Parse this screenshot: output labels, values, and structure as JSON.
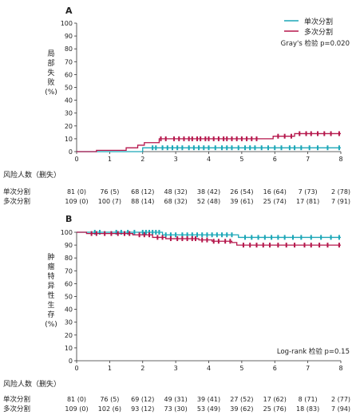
{
  "chart_data": [
    {
      "type": "line",
      "panel_label": "A",
      "ylabel_chars": [
        "局",
        "部",
        "失",
        "败",
        "(%)"
      ],
      "xlim": [
        0,
        8
      ],
      "ylim": [
        0,
        100
      ],
      "xticks": [
        0,
        1,
        2,
        3,
        4,
        5,
        6,
        7,
        8
      ],
      "yticks": [
        0,
        10,
        20,
        30,
        40,
        50,
        60,
        70,
        80,
        90,
        100
      ],
      "legend": {
        "position": "top-right",
        "entries": [
          {
            "name": "单次分割",
            "color": "#1aa6b7"
          },
          {
            "name": "多次分割",
            "color": "#b5164b"
          }
        ]
      },
      "annotation": "Gray's 检验 p=0.020",
      "series": [
        {
          "name": "单次分割",
          "color": "#1aa6b7",
          "x": [
            0,
            1.9,
            2.0,
            8.0
          ],
          "y": [
            0,
            0,
            3,
            3
          ],
          "censor_x": [
            2.3,
            2.4,
            2.6,
            2.75,
            2.9,
            3.05,
            3.2,
            3.4,
            3.55,
            3.7,
            3.85,
            4.0,
            4.2,
            4.4,
            4.55,
            4.7,
            4.9,
            5.1,
            5.25,
            5.4,
            5.6,
            5.8,
            6.0,
            6.2,
            6.45,
            6.6,
            6.8,
            7.05,
            7.3,
            7.6,
            7.95
          ],
          "censor_y": 3
        },
        {
          "name": "多次分割",
          "color": "#b5164b",
          "x": [
            0,
            0.6,
            1.1,
            1.5,
            1.85,
            2.05,
            2.5,
            2.75,
            3.0,
            5.5,
            5.95,
            6.6,
            8.0
          ],
          "y": [
            0,
            1,
            1,
            3,
            5,
            7,
            10,
            10,
            10,
            10,
            12,
            14,
            14
          ],
          "censor_x": [
            2.55,
            2.7,
            2.95,
            3.1,
            3.25,
            3.4,
            3.5,
            3.65,
            3.75,
            3.9,
            4.0,
            4.15,
            4.3,
            4.45,
            4.55,
            4.7,
            4.85,
            5.0,
            5.15,
            5.3,
            5.45,
            6.1,
            6.3,
            6.5,
            6.75,
            6.95,
            7.1,
            7.3,
            7.5,
            7.7,
            7.95
          ],
          "censor_y_by_x": "step"
        }
      ],
      "risk_table": {
        "title": "风险人数（删失）",
        "rows": [
          {
            "label": "单次分割",
            "values": [
              "81 (0)",
              "76 (5)",
              "68 (12)",
              "48 (32)",
              "38 (42)",
              "26 (54)",
              "16 (64)",
              "7 (73)",
              "2 (78)"
            ]
          },
          {
            "label": "多次分割",
            "values": [
              "109 (0)",
              "100 (7)",
              "88 (14)",
              "68 (32)",
              "52 (48)",
              "39 (61)",
              "25 (74)",
              "17 (81)",
              "7 (91)"
            ]
          }
        ]
      }
    },
    {
      "type": "line",
      "panel_label": "B",
      "ylabel_chars": [
        "肿",
        "瘤",
        "特",
        "异",
        "性",
        "生",
        "存",
        "(%)"
      ],
      "xlim": [
        0,
        8
      ],
      "ylim": [
        0,
        100
      ],
      "xticks": [
        0,
        1,
        2,
        3,
        4,
        5,
        6,
        7,
        8
      ],
      "yticks": [
        0,
        10,
        20,
        30,
        40,
        50,
        60,
        70,
        80,
        90,
        100
      ],
      "annotation": "Log-rank 检验  p=0.15",
      "series": [
        {
          "name": "单次分割",
          "color": "#1aa6b7",
          "x": [
            0,
            2.55,
            2.6,
            4.85,
            4.9,
            8.0
          ],
          "y": [
            100,
            100,
            98,
            98,
            96,
            96
          ],
          "censor_x": [
            0.55,
            0.7,
            1.2,
            1.35,
            1.55,
            1.75,
            2.0,
            2.1,
            2.2,
            2.3,
            2.4,
            2.5,
            2.7,
            2.85,
            3.0,
            3.2,
            3.35,
            3.5,
            3.65,
            3.8,
            3.95,
            4.1,
            4.25,
            4.4,
            4.55,
            4.7,
            5.1,
            5.3,
            5.5,
            5.7,
            5.9,
            6.1,
            6.3,
            6.55,
            6.8,
            7.1,
            7.4,
            7.7,
            7.95
          ]
        },
        {
          "name": "多次分割",
          "color": "#b5164b",
          "x": [
            0,
            0.3,
            1.0,
            1.7,
            2.3,
            2.7,
            3.2,
            3.7,
            4.1,
            4.4,
            4.7,
            4.85,
            8.0
          ],
          "y": [
            100,
            99,
            99,
            98,
            96,
            95,
            95,
            94,
            93,
            93,
            92,
            90,
            90
          ],
          "censor_x": [
            0.45,
            0.6,
            0.85,
            1.05,
            1.25,
            1.45,
            1.6,
            1.9,
            2.05,
            2.2,
            2.45,
            2.6,
            2.85,
            3.05,
            3.2,
            3.35,
            3.5,
            3.6,
            3.8,
            3.95,
            4.15,
            4.3,
            4.5,
            4.65,
            5.05,
            5.25,
            5.45,
            5.65,
            5.85,
            6.1,
            6.35,
            6.6,
            6.9,
            7.1,
            7.35,
            7.6,
            7.95
          ]
        }
      ],
      "risk_table": {
        "title": "风险人数（删失）",
        "rows": [
          {
            "label": "单次分割",
            "values": [
              "81 (0)",
              "76 (5)",
              "69 (12)",
              "49 (31)",
              "39 (41)",
              "27 (52)",
              "17 (62)",
              "8 (71)",
              "2 (77)"
            ]
          },
          {
            "label": "多次分割",
            "values": [
              "109 (0)",
              "102 (6)",
              "93 (12)",
              "73 (30)",
              "53 (49)",
              "39 (62)",
              "25 (76)",
              "18 (83)",
              "7 (94)"
            ]
          }
        ]
      }
    }
  ]
}
